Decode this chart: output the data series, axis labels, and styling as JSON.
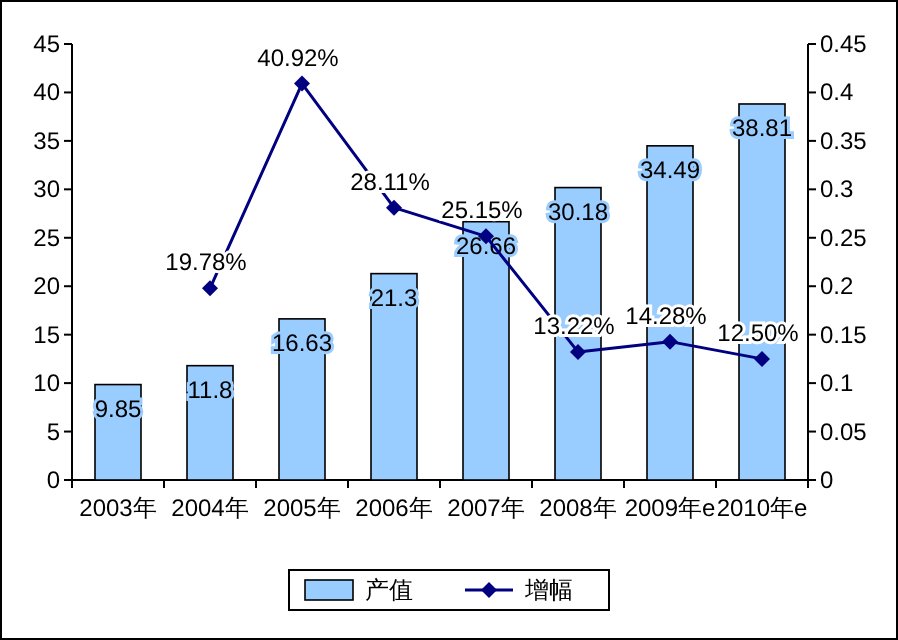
{
  "chart_data": {
    "type": "bar",
    "categories": [
      "2003年",
      "2004年",
      "2005年",
      "2006年",
      "2007年",
      "2008年",
      "2009年e",
      "2010年e"
    ],
    "series": [
      {
        "name": "产值",
        "color": "#99ccff",
        "values": [
          9.85,
          11.8,
          16.63,
          21.3,
          26.66,
          30.18,
          34.49,
          38.81
        ],
        "value_labels": [
          "9.85",
          "11.8",
          "16.63",
          "21.3",
          "26.66",
          "30.18",
          "34.49",
          "38.81"
        ]
      },
      {
        "name": "增幅",
        "type": "line",
        "axis": "y2",
        "color": "#000080",
        "values": [
          null,
          0.1978,
          0.4092,
          0.2811,
          0.2515,
          0.1322,
          0.1428,
          0.125
        ],
        "value_labels": [
          null,
          "19.78%",
          "40.92%",
          "28.11%",
          "25.15%",
          "13.22%",
          "14.28%",
          "12.50%"
        ]
      }
    ],
    "ylim": [
      0,
      45
    ],
    "yticks": [
      0,
      5,
      10,
      15,
      20,
      25,
      30,
      35,
      40,
      45
    ],
    "y2lim": [
      0,
      0.45
    ],
    "y2ticks": [
      0,
      0.05,
      0.1,
      0.15,
      0.2,
      0.25,
      0.3,
      0.35,
      0.4,
      0.45
    ],
    "marker": "diamond",
    "grid": false,
    "legend": "bottom"
  }
}
